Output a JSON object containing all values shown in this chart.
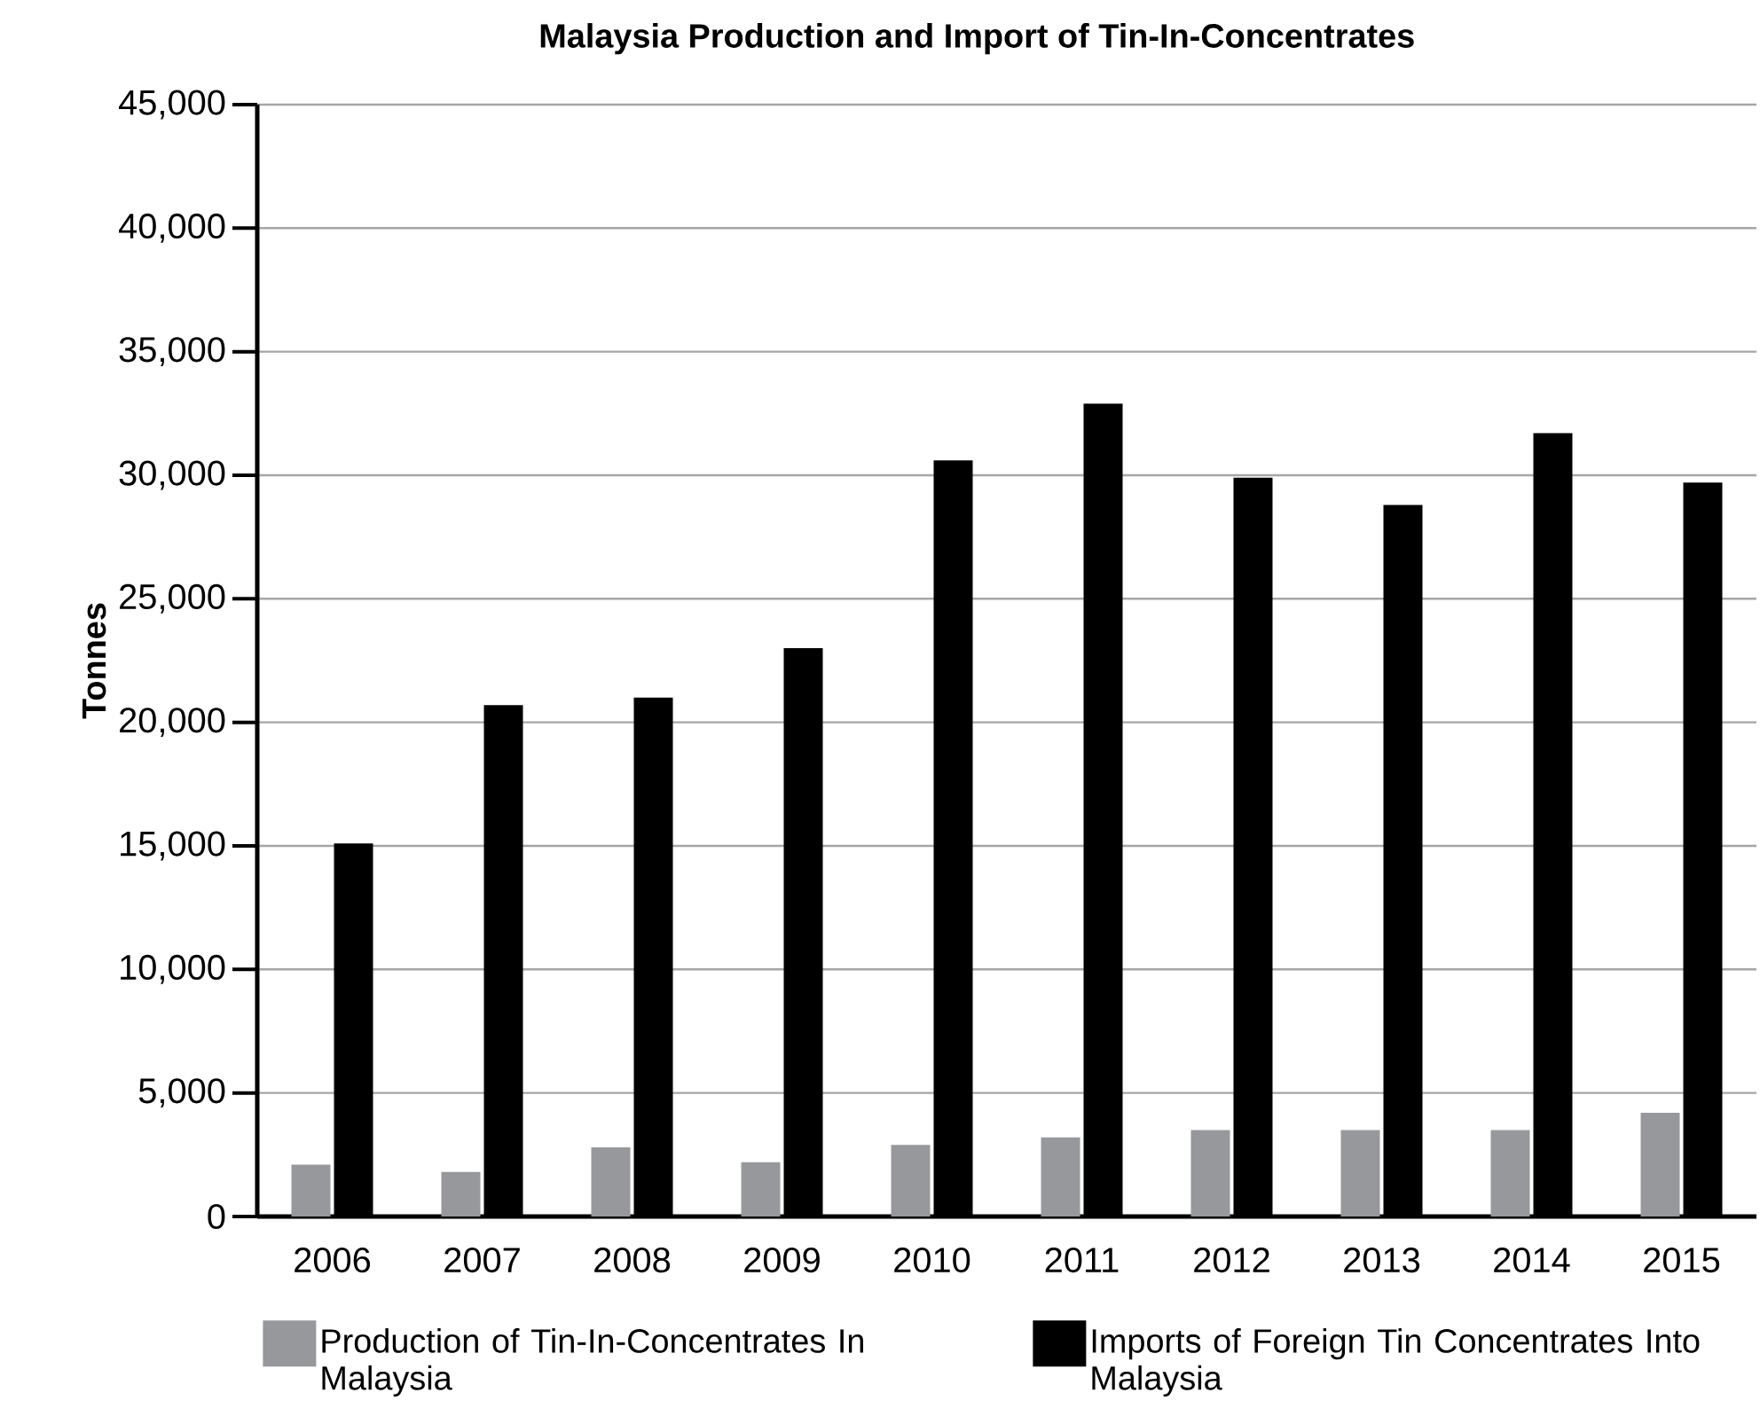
{
  "chart_data": {
    "type": "bar",
    "title": "Malaysia Production and Import of Tin-In-Concentrates",
    "ylabel": "Tonnes",
    "categories": [
      "2006",
      "2007",
      "2008",
      "2009",
      "2010",
      "2011",
      "2012",
      "2013",
      "2014",
      "2015"
    ],
    "series": [
      {
        "name": "Production of Tin-In-Concentrates In Malaysia",
        "color": "#97989b",
        "values": [
          2100,
          1800,
          2800,
          2200,
          2900,
          3200,
          3500,
          3500,
          3500,
          4200
        ]
      },
      {
        "name": "Imports of Foreign Tin Concentrates Into Malaysia",
        "color": "#000000",
        "values": [
          15100,
          20700,
          21000,
          23000,
          30600,
          32900,
          29900,
          28800,
          31700,
          29700
        ]
      }
    ],
    "ylim": [
      0,
      45000
    ],
    "yticks": [
      0,
      {
        "value": 5000,
        "label": "5,000"
      },
      {
        "value": 10000,
        "label": "10,000"
      },
      {
        "value": 15000,
        "label": "15,000"
      },
      {
        "value": 20000,
        "label": "20,000"
      },
      {
        "value": 25000,
        "label": "25,000"
      },
      {
        "value": 30000,
        "label": "30,000"
      },
      {
        "value": 35000,
        "label": "35,000"
      },
      {
        "value": 40000,
        "label": "40,000"
      },
      {
        "value": 45000,
        "label": "45,000"
      }
    ],
    "grid": "y",
    "legend": "bottom"
  }
}
